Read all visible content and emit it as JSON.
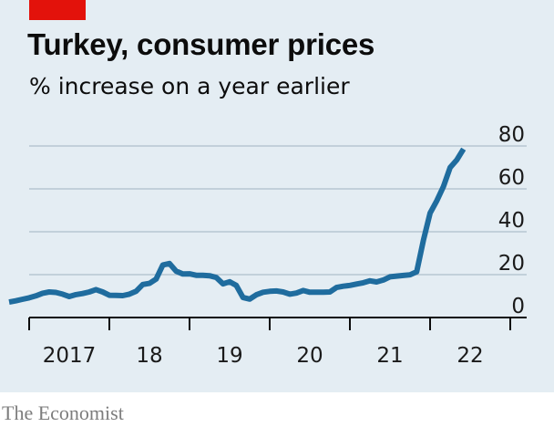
{
  "header": {
    "title": "Turkey, consumer prices",
    "subtitle": "% increase on a year earlier"
  },
  "footer": {
    "source": "The Economist"
  },
  "colors": {
    "background": "#e4edf3",
    "accent": "#e3120b",
    "line": "#1f6c9e",
    "grid": "#b7c6d2",
    "axis": "#0c0c0c"
  },
  "chart_data": {
    "type": "line",
    "ylim": [
      0,
      80
    ],
    "y_ticks": [
      "0",
      "20",
      "40",
      "60",
      "80"
    ],
    "x_ticks": [
      "2017",
      "18",
      "19",
      "20",
      "21",
      "22"
    ],
    "x_range": [
      "2017-01",
      "2022-06"
    ],
    "grid": true,
    "series": [
      {
        "x": [
          "2016-10",
          "2016-11",
          "2016-12",
          "2017-01",
          "2017-02",
          "2017-03",
          "2017-04",
          "2017-05",
          "2017-06",
          "2017-07",
          "2017-08",
          "2017-09",
          "2017-10",
          "2017-11",
          "2017-12",
          "2018-01",
          "2018-02",
          "2018-03",
          "2018-04",
          "2018-05",
          "2018-06",
          "2018-07",
          "2018-08",
          "2018-09",
          "2018-10",
          "2018-11",
          "2018-12",
          "2019-01",
          "2019-02",
          "2019-03",
          "2019-04",
          "2019-05",
          "2019-06",
          "2019-07",
          "2019-08",
          "2019-09",
          "2019-10",
          "2019-11",
          "2019-12",
          "2020-01",
          "2020-02",
          "2020-03",
          "2020-04",
          "2020-05",
          "2020-06",
          "2020-07",
          "2020-08",
          "2020-09",
          "2020-10",
          "2020-11",
          "2020-12",
          "2021-01",
          "2021-02",
          "2021-03",
          "2021-04",
          "2021-05",
          "2021-06",
          "2021-07",
          "2021-08",
          "2021-09",
          "2021-10",
          "2021-11",
          "2021-12",
          "2022-01",
          "2022-02",
          "2022-03",
          "2022-04",
          "2022-05",
          "2022-06"
        ],
        "values": [
          7.2,
          7.8,
          8.5,
          9.2,
          10.1,
          11.3,
          11.9,
          11.7,
          10.9,
          9.8,
          10.7,
          11.2,
          11.9,
          13.0,
          11.9,
          10.4,
          10.3,
          10.2,
          10.9,
          12.2,
          15.4,
          15.9,
          17.9,
          24.5,
          25.2,
          21.6,
          20.3,
          20.4,
          19.7,
          19.7,
          19.5,
          18.7,
          15.7,
          16.7,
          15.0,
          9.3,
          8.6,
          10.6,
          11.8,
          12.2,
          12.4,
          11.9,
          10.9,
          11.4,
          12.6,
          11.8,
          11.8,
          11.8,
          11.9,
          14.0,
          14.6,
          15.0,
          15.6,
          16.2,
          17.1,
          16.6,
          17.5,
          19.0,
          19.3,
          19.6,
          19.9,
          21.3,
          36.1,
          48.7,
          54.4,
          61.1,
          69.97,
          73.5,
          78.6
        ]
      }
    ]
  }
}
